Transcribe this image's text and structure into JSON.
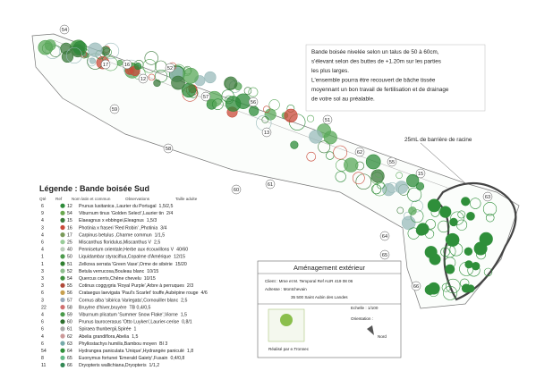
{
  "note": {
    "lines": [
      "Bande boisée nivelée selon un talus de 50 à 60cm,",
      "s'élevant selon des buttes de +1.20m sur les parties",
      "les plus larges.",
      "L'ensemble pourra être recouvert de bâche tissée",
      "moyennant un bon travail de fertilisation et de drainage",
      "de votre sol au préalable."
    ]
  },
  "barrier_label": "25mL de barrière de racine",
  "plan_tags": [
    "54",
    "17",
    "16",
    "12",
    "52",
    "57",
    "59",
    "56",
    "13",
    "51",
    "58",
    "60",
    "61",
    "62",
    "55",
    "15",
    "63",
    "64",
    "65",
    "66"
  ],
  "legend": {
    "title": "Légende : Bande boisée Sud",
    "headers": [
      "Qté",
      "Ref",
      "Nom latin et commun",
      "Observations",
      "Taille adulte"
    ],
    "rows": [
      [
        "6",
        "12",
        "Prunus lusitanica ,Laurier du Portugal",
        "1,5/2,5"
      ],
      [
        "9",
        "54",
        "Viburnum tinus 'Golden Select',Laurier tin",
        "2/4"
      ],
      [
        "4",
        "15",
        "Elaeagnus x ebbingei,Eleagnus",
        "1,5/3"
      ],
      [
        "3",
        "16",
        "Photinia x fraseri 'Red Robin' ,Photinia",
        "3/4"
      ],
      [
        "4",
        "17",
        "Carpinus betulus ,Charme commun",
        "1/1,5"
      ],
      [
        "6",
        "25",
        "Miscanthus floridulus,Miscanthus V",
        "2,5"
      ],
      [
        "4",
        "40",
        "Pennisetum orientale,Herbe aux écouvillons V",
        "40/60"
      ],
      [
        "1",
        "50",
        "Liquidambar styraciflua,Copalme d'Amérique",
        "12/15"
      ],
      [
        "1",
        "51",
        "Zelkova serrata 'Green Vase',Orme de sibérie",
        "15/20"
      ],
      [
        "3",
        "52",
        "Betula verrucosa,Bouleau blanc",
        "10/15"
      ],
      [
        "3",
        "54",
        "Quercus cerris,Chêne chevelu",
        "10/15"
      ],
      [
        "3",
        "55",
        "Cotinus coggygria 'Royal Purple',Arbre à perruques",
        "2/3"
      ],
      [
        "6",
        "56",
        "Crataegus laevigata 'Paul's Scarlet' touffe,Aubépine rouge",
        "4/6"
      ],
      [
        "3",
        "57",
        "Cornus alba 'sibirica Variegata',Cornouiller blanc",
        "2,5"
      ],
      [
        "22",
        "58",
        "Bruyère d'hiver,bruyère",
        "TB 0,4/0,5"
      ],
      [
        "4",
        "59",
        "Viburnum plicatum 'Summer Snow Flake',Viorne",
        "1,5"
      ],
      [
        "6",
        "60",
        "Prunus laurocerasus 'Otto Luyken',Laurier-cerise",
        "0,8/1"
      ],
      [
        "6",
        "61",
        "Spiraea thunbergii,Spirée",
        "1"
      ],
      [
        "4",
        "62",
        "Abelia grandiflora,Abelia",
        "1,5"
      ],
      [
        "6",
        "63",
        "Phyllostachys humilis,Bambou moyen",
        "BI 3"
      ],
      [
        "54",
        "64",
        "Hydrangea paniculata 'Unique',Hydrangée paniculé",
        "1,8"
      ],
      [
        "8",
        "65",
        "Euonymus fortunei 'Emerald Gaiety',Fusain",
        "0,4/0,8"
      ],
      [
        "11",
        "66",
        "Dryopteris wallichiana,Dryopteris",
        "1/1,2"
      ]
    ]
  },
  "title_block": {
    "title": "Aménagement extérieur",
    "client": "Client : Mme et M. Temporal  Ref AUR 419 08 06",
    "address": "Adresse : Montchevain",
    "city": "35 500 Saint Aubin des Landes",
    "scale": "Echelle : 1/100",
    "orientation": "Orientation :",
    "north": "Nord",
    "author": "Réalisé par e.Tronnec"
  }
}
